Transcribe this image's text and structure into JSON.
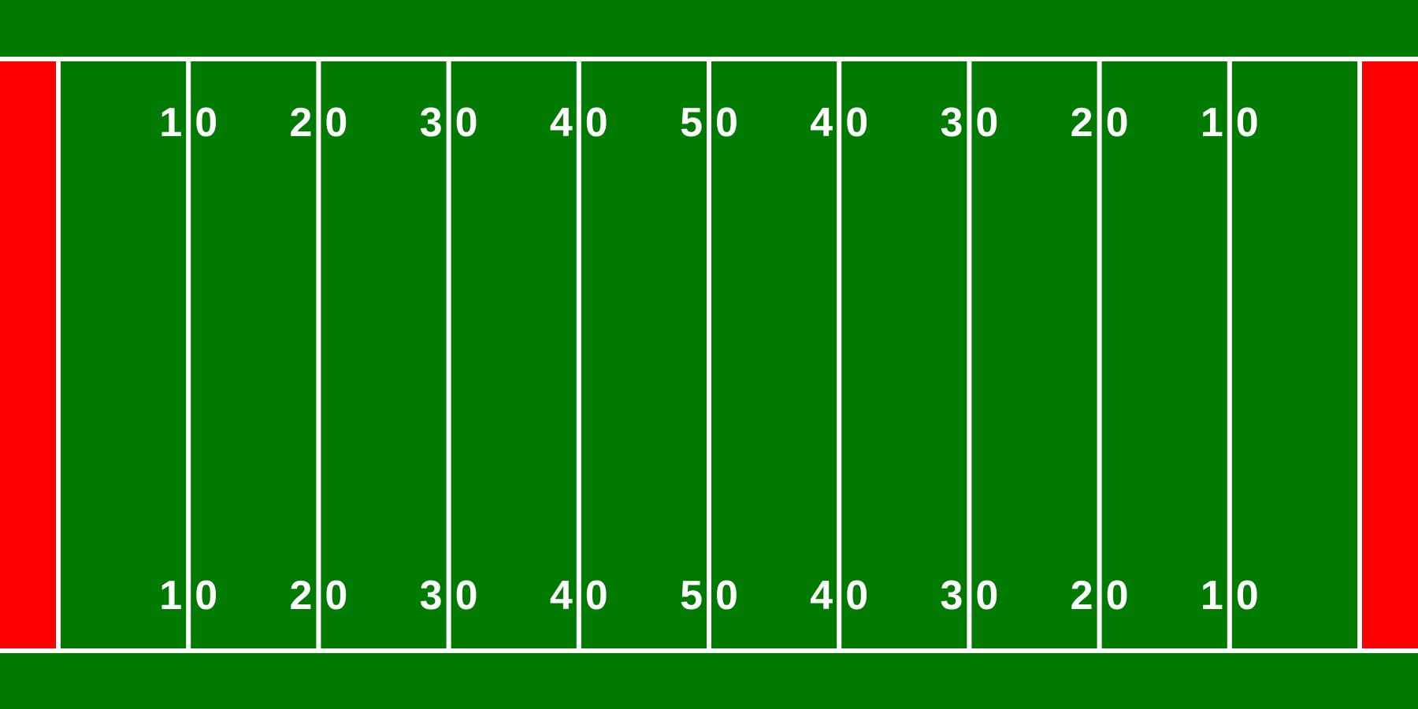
{
  "colors": {
    "field": "#007a00",
    "endzone": "#ff0000",
    "lines": "#ffffff",
    "numbers": "#ffffff"
  },
  "yard_lines": [
    10,
    20,
    30,
    40,
    50,
    40,
    30,
    20,
    10
  ],
  "number_labels": [
    {
      "tens": "1",
      "zero": "0"
    },
    {
      "tens": "2",
      "zero": "0"
    },
    {
      "tens": "3",
      "zero": "0"
    },
    {
      "tens": "4",
      "zero": "0"
    },
    {
      "tens": "5",
      "zero": "0"
    },
    {
      "tens": "4",
      "zero": "0"
    },
    {
      "tens": "3",
      "zero": "0"
    },
    {
      "tens": "2",
      "zero": "0"
    },
    {
      "tens": "1",
      "zero": "0"
    }
  ]
}
